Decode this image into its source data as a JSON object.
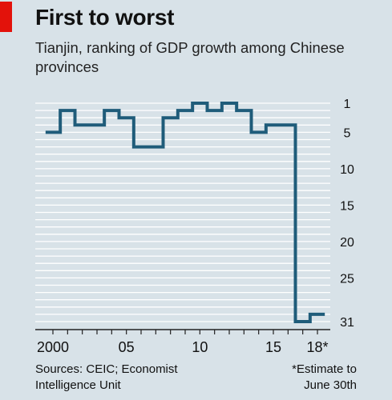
{
  "title": "First to worst",
  "subtitle": "Tianjin, ranking of GDP growth among Chinese provinces",
  "source": [
    "Sources: CEIC; Economist",
    "Intelligence Unit"
  ],
  "note": [
    "*Estimate to",
    "June 30th"
  ],
  "colors": {
    "background": "#d8e2e8",
    "accent": "#e3120b",
    "line": "#1f5c7a",
    "grid": "#ffffff"
  },
  "chart_data": {
    "type": "line",
    "title": "First to worst",
    "subtitle": "Tianjin, ranking of GDP growth among Chinese provinces",
    "xlabel": "",
    "ylabel": "",
    "x_tick_labels": [
      "2000",
      "05",
      "10",
      "15",
      "18*"
    ],
    "y_tick_labels": [
      "1",
      "5",
      "10",
      "15",
      "20",
      "25",
      "31"
    ],
    "y_inverted": true,
    "ylim": [
      1,
      31
    ],
    "xlim": [
      2000,
      2018
    ],
    "grid": true,
    "series": [
      {
        "x": [
          2000,
          2001,
          2002,
          2003,
          2004,
          2005,
          2006,
          2007,
          2008,
          2009,
          2010,
          2011,
          2012,
          2013,
          2014,
          2015,
          2016,
          2017,
          2018
        ],
        "values": [
          5,
          2,
          4,
          4,
          2,
          3,
          7,
          7,
          3,
          2,
          1,
          2,
          1,
          2,
          5,
          4,
          4,
          31,
          30
        ]
      }
    ]
  }
}
